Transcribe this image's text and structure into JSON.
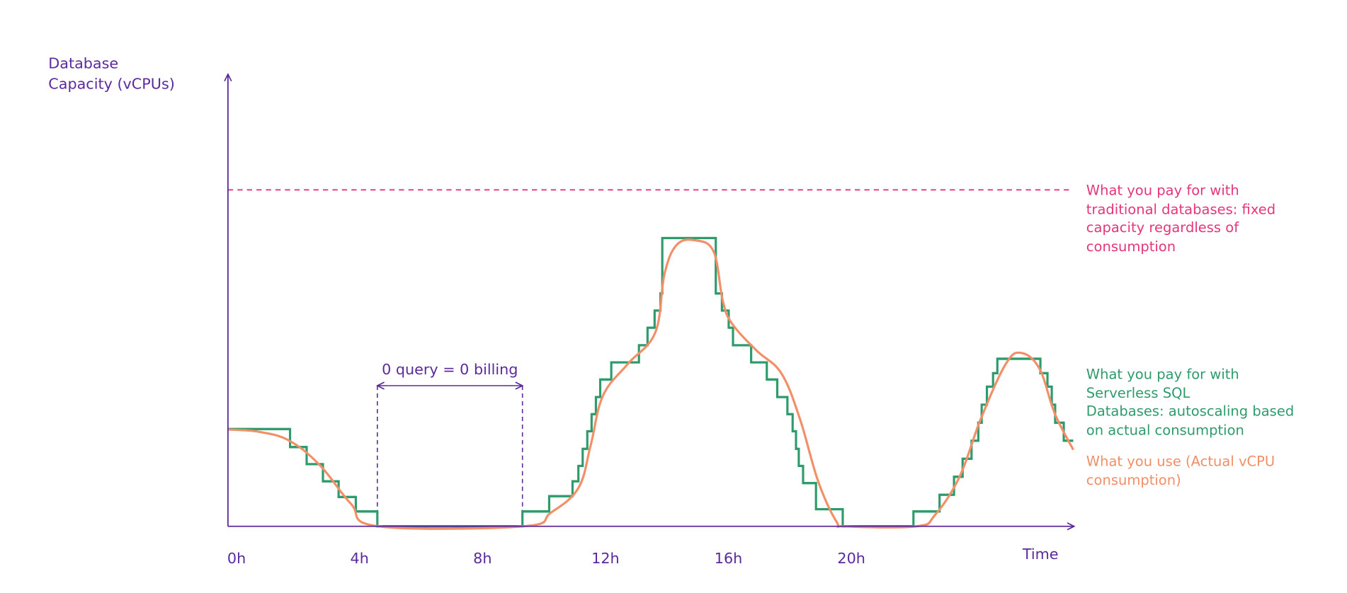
{
  "chart_data": {
    "type": "line",
    "y_label": "Database\nCapacity (vCPUs)",
    "x_label": "Time",
    "xlim": [
      0,
      27.5
    ],
    "ylim": [
      0,
      10
    ],
    "xticks": [
      {
        "value": 0,
        "label": "0h"
      },
      {
        "value": 4,
        "label": "4h"
      },
      {
        "value": 8,
        "label": "8h"
      },
      {
        "value": 12,
        "label": "12h"
      },
      {
        "value": 16,
        "label": "16h"
      },
      {
        "value": 20,
        "label": "20h"
      }
    ],
    "annotations": [
      {
        "text": "0 query = 0 billing",
        "x_start": 4.86,
        "x_end": 9.58
      }
    ],
    "series": [
      {
        "name": "What you pay for with\ntraditional databases: fixed\ncapacity regardless of\nconsumption",
        "color": "#e5357b",
        "style": "dashed",
        "values": [
          7.47
        ]
      },
      {
        "name": "What you pay for with\nServerless SQL\nDatabases: autoscaling based\n on actual consumption",
        "color": "#2f9b6c",
        "style": "step",
        "x": [
          0,
          2.02,
          2.56,
          3.09,
          3.6,
          4.16,
          4.86,
          9.58,
          10.45,
          11.21,
          11.4,
          11.54,
          11.69,
          11.83,
          11.97,
          12.11,
          12.47,
          13.37,
          13.65,
          13.88,
          14.07,
          14.13,
          15.87,
          16.07,
          16.29,
          16.43,
          17.02,
          17.53,
          17.87,
          18.2,
          18.37,
          18.48,
          18.57,
          18.71,
          19.13,
          20.0,
          22.3,
          23.15,
          23.62,
          23.9,
          24.19,
          24.41,
          24.52,
          24.69,
          24.89,
          25.03,
          26.43,
          26.66,
          26.8,
          26.91,
          27.19
        ],
        "values": [
          2.16,
          1.76,
          1.38,
          1.0,
          0.65,
          0.33,
          0,
          0.33,
          0.67,
          1.0,
          1.34,
          1.72,
          2.11,
          2.49,
          2.87,
          3.26,
          3.64,
          4.02,
          4.41,
          4.79,
          5.17,
          6.4,
          5.17,
          4.79,
          4.41,
          4.02,
          3.64,
          3.26,
          2.87,
          2.49,
          2.11,
          1.72,
          1.34,
          0.96,
          0.38,
          0,
          0.33,
          0.7,
          1.1,
          1.5,
          1.9,
          2.3,
          2.7,
          3.1,
          3.4,
          3.72,
          3.4,
          3.1,
          2.7,
          2.3,
          1.9
        ]
      },
      {
        "name": "What you use (Actual vCPU\nconsumption)",
        "color": "#f08f68",
        "style": "smooth",
        "x": [
          0,
          1,
          2,
          3,
          4,
          4.9,
          9.6,
          10.5,
          11.4,
          11.8,
          12.2,
          13,
          13.9,
          14.2,
          14.6,
          15.2,
          15.8,
          16.1,
          16.4,
          17.2,
          18,
          18.6,
          19.2,
          19.8,
          20.1,
          22.4,
          23,
          23.8,
          24.5,
          25.3,
          25.8,
          26.4,
          26.9,
          27.5
        ],
        "values": [
          2.15,
          2.1,
          1.9,
          1.35,
          0.5,
          0,
          0,
          0.3,
          0.85,
          1.8,
          2.9,
          3.6,
          4.3,
          5.6,
          6.25,
          6.35,
          6.1,
          5.0,
          4.5,
          3.9,
          3.4,
          2.4,
          1.0,
          0.1,
          0,
          0,
          0.25,
          1.1,
          2.4,
          3.6,
          3.85,
          3.5,
          2.5,
          1.7
        ]
      }
    ]
  }
}
